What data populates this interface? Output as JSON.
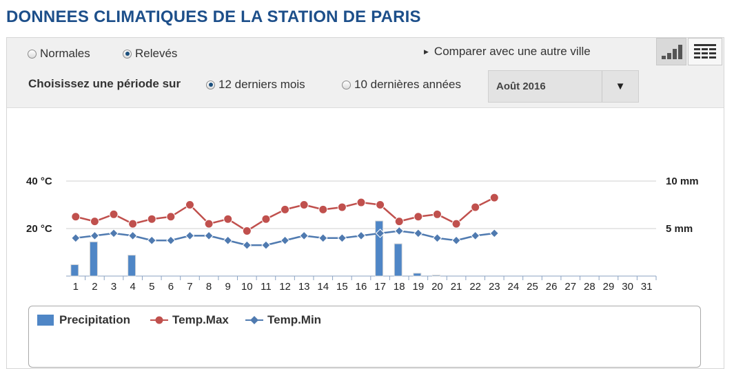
{
  "page": {
    "title": "DONNEES CLIMATIQUES DE LA STATION DE PARIS"
  },
  "controls": {
    "data_type": {
      "options": [
        {
          "label": "Normales",
          "checked": false
        },
        {
          "label": "Relevés",
          "checked": true
        }
      ]
    },
    "period": {
      "label": "Choisissez une période sur",
      "options": [
        {
          "label": "12 derniers mois",
          "checked": true
        },
        {
          "label": "10 dernières années",
          "checked": false
        }
      ]
    },
    "compare_link": "Comparer avec une autre ville",
    "month_select": {
      "value": "Août 2016"
    },
    "view_toggle": {
      "active": "chart",
      "icons": [
        "bar-chart-icon",
        "table-grid-icon"
      ]
    }
  },
  "chart_data": {
    "type": "line",
    "x": [
      1,
      2,
      3,
      4,
      5,
      6,
      7,
      8,
      9,
      10,
      11,
      12,
      13,
      14,
      15,
      16,
      17,
      18,
      19,
      20,
      21,
      22,
      23,
      24,
      25,
      26,
      27,
      28,
      29,
      30,
      31
    ],
    "series": [
      {
        "name": "Precipitation",
        "type": "bar",
        "axis": "right",
        "color": "#4f86c6",
        "values": [
          1.2,
          3.6,
          0,
          2.2,
          0,
          0,
          0,
          0,
          0,
          0,
          0,
          0,
          0,
          0,
          0,
          0,
          5.8,
          3.4,
          0.3,
          0.1,
          0,
          0,
          0,
          null,
          null,
          null,
          null,
          null,
          null,
          null,
          null
        ]
      },
      {
        "name": "Temp.Max",
        "type": "line",
        "axis": "left",
        "color": "#c0504d",
        "values": [
          25,
          23,
          26,
          22,
          24,
          25,
          30,
          22,
          24,
          19,
          24,
          28,
          30,
          28,
          29,
          31,
          30,
          23,
          25,
          26,
          22,
          29,
          33,
          null,
          null,
          null,
          null,
          null,
          null,
          null,
          null
        ]
      },
      {
        "name": "Temp.Min",
        "type": "line",
        "axis": "left",
        "color": "#4f7ab0",
        "values": [
          16,
          17,
          18,
          17,
          15,
          15,
          17,
          17,
          15,
          13,
          13,
          15,
          17,
          16,
          16,
          17,
          18,
          19,
          18,
          16,
          15,
          17,
          18,
          null,
          null,
          null,
          null,
          null,
          null,
          null,
          null
        ]
      }
    ],
    "y_left": {
      "unit_ticks": [
        {
          "value": 20,
          "label": "20 °C"
        },
        {
          "value": 40,
          "label": "40 °C"
        }
      ],
      "range": [
        0,
        40
      ]
    },
    "y_right": {
      "unit_ticks": [
        {
          "value": 5,
          "label": "5 mm"
        },
        {
          "value": 10,
          "label": "10 mm"
        }
      ],
      "range": [
        0,
        10
      ]
    },
    "grid": true,
    "legend_position": "bottom"
  },
  "legend": {
    "items": [
      {
        "label": "Precipitation",
        "color": "#4f86c6"
      },
      {
        "label": "Temp.Max",
        "color": "#c0504d"
      },
      {
        "label": "Temp.Min",
        "color": "#4f7ab0"
      }
    ]
  }
}
